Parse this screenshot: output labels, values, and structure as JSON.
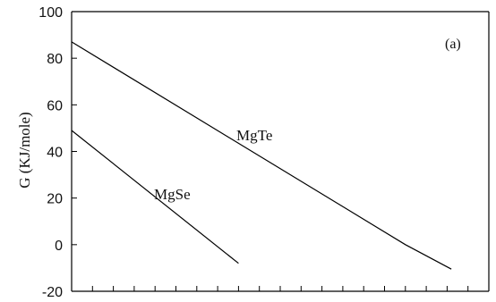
{
  "chart_data": {
    "type": "line",
    "title": "",
    "annotation": "(a)",
    "xlabel": "",
    "ylabel": "G (KJ/mole)",
    "x_tick_count": 21,
    "xlim": [
      0,
      20
    ],
    "ylim": [
      -20,
      100
    ],
    "y_ticks": [
      -20,
      0,
      20,
      40,
      60,
      80,
      100
    ],
    "grid": false,
    "series": [
      {
        "name": "MgTe",
        "points": [
          [
            0,
            87
          ],
          [
            16,
            0
          ],
          [
            18.2,
            -10.5
          ]
        ]
      },
      {
        "name": "MgSe",
        "points": [
          [
            0,
            49
          ],
          [
            8,
            -8
          ]
        ]
      }
    ]
  }
}
